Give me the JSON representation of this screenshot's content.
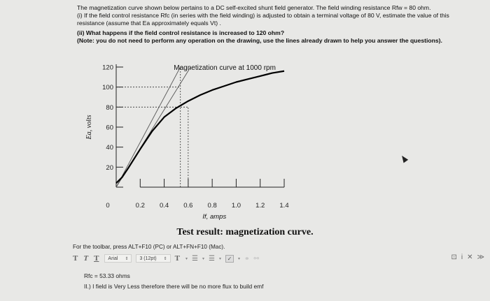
{
  "question": {
    "intro": "The magnetization curve shown below pertains to a DC self-excited shunt field generator. The field winding resistance Rfw = 80 ohm.",
    "part1": "(i) If the field control resistance Rfc (in series with the field winding) is adjusted to obtain a terminal voltage of 80 V, estimate the value of this resistance (assume that Ea approximately equals Vt) .",
    "part2": "(ii) What happens if the field control resistance is increased to 120 ohm?",
    "note": "(Note: you do not need to perform any operation on the drawing, use the lines already drawn to help you answer the questions)."
  },
  "caption": "Test result: magnetization curve.",
  "toolbar": {
    "hint": "For the toolbar, press ALT+F10 (PC) or ALT+FN+F10 (Mac).",
    "bold_icon": "T",
    "italic_icon": "T",
    "underline_icon": "T",
    "font_family": "Arial",
    "font_size": "3 (12pt)",
    "text_color_icon": "T",
    "list_icon": "☰",
    "ordered_list_icon": "☰",
    "check_icon": "✓",
    "right_icons": [
      "⊡",
      "i",
      "✕",
      "≫"
    ]
  },
  "answer": {
    "line1": "Rfc = 53.33 ohms",
    "line2": "II.) I field is Very Less therefore there will be no more flux to build emf"
  },
  "chart_data": {
    "type": "line",
    "title": "Magnetization curve at 1000 rpm",
    "xlabel": "If, amps",
    "ylabel": "Ea, volts",
    "x_ticks": [
      "0",
      "0.2",
      "0.4",
      "0.6",
      "0.8",
      "1.0",
      "1.2",
      "1.4"
    ],
    "y_ticks": [
      "20",
      "40",
      "60",
      "80",
      "100",
      "120"
    ],
    "xlim": [
      0,
      1.4
    ],
    "ylim": [
      0,
      120
    ],
    "series": [
      {
        "x": [
          0,
          0.05,
          0.1,
          0.2,
          0.3,
          0.4,
          0.5,
          0.6,
          0.7,
          0.8,
          0.9,
          1.0,
          1.1,
          1.2,
          1.3,
          1.4
        ],
        "y": [
          4,
          10,
          19,
          38,
          56,
          70,
          79,
          86,
          92,
          97,
          101,
          105,
          108,
          111,
          114,
          116
        ]
      }
    ],
    "resistance_lines": [
      {
        "x": [
          0,
          0.535
        ],
        "y": [
          0,
          120
        ]
      },
      {
        "x": [
          0,
          0.62
        ],
        "y": [
          0,
          120
        ]
      }
    ],
    "guide_lines": [
      {
        "type": "horizontal",
        "y": 100,
        "x_to": 0.535
      },
      {
        "type": "horizontal",
        "y": 80,
        "x_to": 0.6
      },
      {
        "type": "vertical",
        "x": 0.535,
        "y_to": 120
      },
      {
        "type": "vertical",
        "x": 0.6,
        "y_to": 80
      }
    ]
  }
}
